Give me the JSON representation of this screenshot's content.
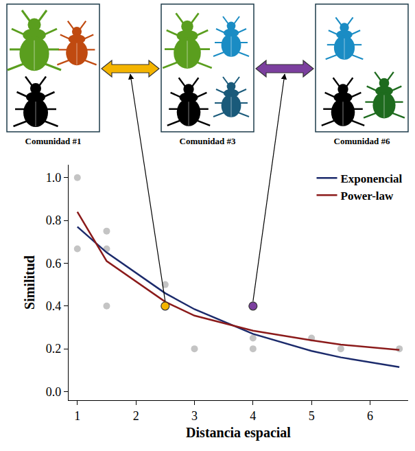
{
  "chart_data": {
    "type": "scatter",
    "xlabel": "Distancia espacial",
    "ylabel": "Similitud",
    "xlim": [
      0.85,
      6.65
    ],
    "ylim": [
      -0.04,
      1.06
    ],
    "xticks": [
      1,
      2,
      3,
      4,
      5,
      6
    ],
    "yticks": [
      {
        "value": 0,
        "label": "0.0"
      },
      0.2,
      0.4,
      0.6,
      0.8,
      {
        "value": 1,
        "label": "1.0"
      }
    ],
    "grid": false,
    "legend": "upper right",
    "series": [
      {
        "type": "scatter",
        "color": "#c4c4c4",
        "x": [
          1,
          1,
          1.5,
          1.5,
          1.5,
          2.5,
          3,
          4,
          4,
          5,
          5.5,
          6.5
        ],
        "values": [
          1.0,
          0.667,
          0.75,
          0.667,
          0.4,
          0.5,
          0.2,
          0.25,
          0.2,
          0.25,
          0.2,
          0.2
        ]
      },
      {
        "name": "Exponencial",
        "type": "line",
        "color": "#1b2a6b",
        "x": [
          1,
          1.5,
          2.5,
          3,
          4,
          5,
          5.5,
          6.5
        ],
        "values": [
          0.77,
          0.65,
          0.46,
          0.385,
          0.27,
          0.19,
          0.16,
          0.115
        ]
      },
      {
        "name": "Power-law",
        "type": "line",
        "color": "#8b1a1a",
        "x": [
          1,
          1.5,
          2.5,
          3,
          4,
          5,
          5.5,
          6.5
        ],
        "values": [
          0.84,
          0.61,
          0.42,
          0.355,
          0.285,
          0.24,
          0.22,
          0.195
        ]
      }
    ],
    "communities": [
      "Comunidad #1",
      "Comunidad #3",
      "Comunidad #6"
    ],
    "links": [
      {
        "from": 0,
        "to": 1,
        "x": 2.5,
        "y": 0.4,
        "color": "#f4b400"
      },
      {
        "from": 1,
        "to": 2,
        "x": 4,
        "y": 0.4,
        "color": "#7b3f9e"
      }
    ]
  }
}
